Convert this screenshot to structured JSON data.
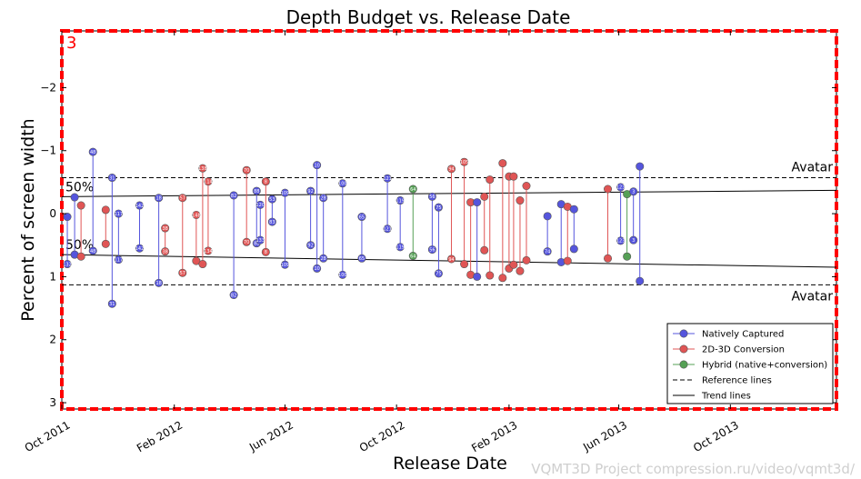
{
  "chart_data": {
    "type": "scatter",
    "title": "Depth Budget vs. Release Date",
    "xlabel": "Release Date",
    "ylabel": "Percent of screen width",
    "panel_number": "3",
    "watermark": "VQMT3D Project compression.ru/video/vqmt3d/",
    "xlim": [
      "2011-10-01",
      "2014-01-25"
    ],
    "ylim": [
      3.1,
      -2.9
    ],
    "y_inverted": true,
    "x_ticks": [
      {
        "date": "2011-10-01",
        "label": "Oct 2011"
      },
      {
        "date": "2012-02-01",
        "label": "Feb 2012"
      },
      {
        "date": "2012-06-01",
        "label": "Jun 2012"
      },
      {
        "date": "2012-10-01",
        "label": "Oct 2012"
      },
      {
        "date": "2013-02-01",
        "label": "Feb 2013"
      },
      {
        "date": "2013-06-01",
        "label": "Jun 2013"
      },
      {
        "date": "2013-10-01",
        "label": "Oct 2013"
      }
    ],
    "y_ticks": [
      {
        "value": -2,
        "label": "−2"
      },
      {
        "value": -1,
        "label": "−1"
      },
      {
        "value": 0,
        "label": "0"
      },
      {
        "value": 1,
        "label": "1"
      },
      {
        "value": 2,
        "label": "2"
      },
      {
        "value": 3,
        "label": "3"
      }
    ],
    "grid": false,
    "legend_position": "bottom-right",
    "colors": {
      "natively": "#5555dd",
      "conversion": "#e05555",
      "hybrid": "#55a055",
      "panel_border": "#ff0000"
    },
    "legend": [
      {
        "key": "natively",
        "label": "Natively Captured",
        "style": "marker"
      },
      {
        "key": "conversion",
        "label": "2D-3D Conversion",
        "style": "marker"
      },
      {
        "key": "hybrid",
        "label": "Hybrid (native+conversion)",
        "style": "marker"
      },
      {
        "key": "reference",
        "label": "Reference lines",
        "style": "dashed"
      },
      {
        "key": "trend",
        "label": "Trend lines",
        "style": "solid"
      }
    ],
    "reference_lines": [
      {
        "value": -0.57,
        "label": "Avatar",
        "label_side": "above"
      },
      {
        "value": 1.13,
        "label": "Avatar",
        "label_side": "below"
      }
    ],
    "trend_lines": [
      {
        "label": "50%",
        "start": [
          "2011-10-01",
          -0.27
        ],
        "end": [
          "2014-01-25",
          -0.37
        ]
      },
      {
        "label": "50%",
        "start": [
          "2011-10-01",
          0.65
        ],
        "end": [
          "2014-01-25",
          0.85
        ]
      }
    ],
    "films": [
      {
        "x": "2011-10-07",
        "top": 0.05,
        "bottom": 0.8,
        "type": "natively",
        "labels": [
          "",
          "132"
        ]
      },
      {
        "x": "2011-10-15",
        "top": -0.26,
        "bottom": 0.65,
        "type": "natively",
        "labels": [
          "",
          ""
        ]
      },
      {
        "x": "2011-10-22",
        "top": -0.13,
        "bottom": 0.68,
        "type": "conversion",
        "labels": [
          "",
          ""
        ]
      },
      {
        "x": "2011-11-04",
        "top": -0.98,
        "bottom": 0.59,
        "type": "natively",
        "labels": [
          "48",
          "48"
        ]
      },
      {
        "x": "2011-11-18",
        "top": -0.06,
        "bottom": 0.48,
        "type": "conversion",
        "labels": [
          "",
          ""
        ]
      },
      {
        "x": "2011-11-25",
        "top": -0.57,
        "bottom": 1.43,
        "type": "natively",
        "labels": [
          "31",
          "31"
        ]
      },
      {
        "x": "2011-12-02",
        "top": 0.0,
        "bottom": 0.73,
        "type": "natively",
        "labels": [
          "117",
          "117"
        ]
      },
      {
        "x": "2011-12-25",
        "top": -0.13,
        "bottom": 0.55,
        "type": "natively",
        "labels": [
          "142",
          "142"
        ]
      },
      {
        "x": "2012-01-15",
        "top": -0.25,
        "bottom": 1.1,
        "type": "natively",
        "labels": [
          "18",
          "18"
        ]
      },
      {
        "x": "2012-01-22",
        "top": 0.23,
        "bottom": 0.6,
        "type": "conversion",
        "labels": [
          "38",
          "38"
        ]
      },
      {
        "x": "2012-02-10",
        "top": -0.25,
        "bottom": 0.94,
        "type": "conversion",
        "labels": [
          "57",
          "57"
        ]
      },
      {
        "x": "2012-02-25",
        "top": 0.02,
        "bottom": 0.75,
        "type": "conversion",
        "labels": [
          "148",
          ""
        ]
      },
      {
        "x": "2012-03-03",
        "top": -0.72,
        "bottom": 0.8,
        "type": "conversion",
        "labels": [
          "138",
          ""
        ]
      },
      {
        "x": "2012-03-09",
        "top": -0.51,
        "bottom": 0.59,
        "type": "conversion",
        "labels": [
          "114",
          "134"
        ]
      },
      {
        "x": "2012-04-06",
        "top": -0.29,
        "bottom": 1.29,
        "type": "natively",
        "labels": [
          "82",
          "82"
        ]
      },
      {
        "x": "2012-04-20",
        "top": -0.69,
        "bottom": 0.45,
        "type": "conversion",
        "labels": [
          "70",
          "70"
        ]
      },
      {
        "x": "2012-05-01",
        "top": -0.36,
        "bottom": 0.47,
        "type": "natively",
        "labels": [
          "88",
          "88"
        ]
      },
      {
        "x": "2012-05-05",
        "top": -0.14,
        "bottom": 0.42,
        "type": "natively",
        "labels": [
          "120",
          "133"
        ]
      },
      {
        "x": "2012-05-11",
        "top": -0.51,
        "bottom": 0.61,
        "type": "conversion",
        "labels": [
          "8",
          "8"
        ]
      },
      {
        "x": "2012-05-18",
        "top": -0.23,
        "bottom": 0.13,
        "type": "natively",
        "labels": [
          "53",
          "83"
        ]
      },
      {
        "x": "2012-06-01",
        "top": -0.33,
        "bottom": 0.81,
        "type": "natively",
        "labels": [
          "109",
          "109"
        ]
      },
      {
        "x": "2012-06-29",
        "top": -0.36,
        "bottom": 0.5,
        "type": "natively",
        "labels": [
          "92",
          "92"
        ]
      },
      {
        "x": "2012-07-06",
        "top": -0.77,
        "bottom": 0.87,
        "type": "natively",
        "labels": [
          "10",
          "10"
        ]
      },
      {
        "x": "2012-07-13",
        "top": -0.25,
        "bottom": 0.71,
        "type": "natively",
        "labels": [
          "28",
          "28"
        ]
      },
      {
        "x": "2012-08-03",
        "top": -0.48,
        "bottom": 0.97,
        "type": "natively",
        "labels": [
          "100",
          "100"
        ]
      },
      {
        "x": "2012-08-24",
        "top": 0.05,
        "bottom": 0.71,
        "type": "natively",
        "labels": [
          "65",
          "65"
        ]
      },
      {
        "x": "2012-09-21",
        "top": -0.56,
        "bottom": 0.24,
        "type": "natively",
        "labels": [
          "121",
          "121"
        ]
      },
      {
        "x": "2012-10-05",
        "top": -0.21,
        "bottom": 0.53,
        "type": "natively",
        "labels": [
          "119",
          "119"
        ]
      },
      {
        "x": "2012-10-19",
        "top": -0.39,
        "bottom": 0.67,
        "type": "hybrid",
        "labels": [
          "64",
          "64"
        ]
      },
      {
        "x": "2012-11-09",
        "top": -0.27,
        "bottom": 0.57,
        "type": "natively",
        "labels": [
          "56",
          "56"
        ]
      },
      {
        "x": "2012-11-16",
        "top": -0.1,
        "bottom": 0.95,
        "type": "natively",
        "labels": [
          "75",
          "75"
        ]
      },
      {
        "x": "2012-11-30",
        "top": -0.71,
        "bottom": 0.72,
        "type": "conversion",
        "labels": [
          "94",
          "94"
        ]
      },
      {
        "x": "2012-12-14",
        "top": -0.82,
        "bottom": 0.8,
        "type": "conversion",
        "labels": [
          "105",
          ""
        ]
      },
      {
        "x": "2012-12-21",
        "top": -0.18,
        "bottom": 0.97,
        "type": "conversion",
        "labels": [
          "",
          ""
        ]
      },
      {
        "x": "2012-12-28",
        "top": -0.18,
        "bottom": 1.0,
        "type": "natively",
        "labels": [
          "",
          ""
        ]
      },
      {
        "x": "2013-01-05",
        "top": -0.27,
        "bottom": 0.58,
        "type": "conversion",
        "labels": [
          "",
          ""
        ]
      },
      {
        "x": "2013-01-11",
        "top": -0.54,
        "bottom": 0.98,
        "type": "conversion",
        "labels": [
          "",
          ""
        ]
      },
      {
        "x": "2013-01-25",
        "top": -0.8,
        "bottom": 1.02,
        "type": "conversion",
        "labels": [
          "",
          ""
        ]
      },
      {
        "x": "2013-02-01",
        "top": -0.59,
        "bottom": 0.87,
        "type": "conversion",
        "labels": [
          "",
          ""
        ]
      },
      {
        "x": "2013-02-06",
        "top": -0.59,
        "bottom": 0.81,
        "type": "conversion",
        "labels": [
          "",
          ""
        ]
      },
      {
        "x": "2013-02-13",
        "top": -0.21,
        "bottom": 0.91,
        "type": "conversion",
        "labels": [
          "",
          ""
        ]
      },
      {
        "x": "2013-02-20",
        "top": -0.44,
        "bottom": 0.74,
        "type": "conversion",
        "labels": [
          "",
          ""
        ]
      },
      {
        "x": "2013-03-15",
        "top": 0.04,
        "bottom": 0.6,
        "type": "natively",
        "labels": [
          "",
          "74"
        ]
      },
      {
        "x": "2013-03-30",
        "top": -0.15,
        "bottom": 0.77,
        "type": "natively",
        "labels": [
          "",
          ""
        ]
      },
      {
        "x": "2013-04-06",
        "top": -0.11,
        "bottom": 0.75,
        "type": "conversion",
        "labels": [
          "",
          ""
        ]
      },
      {
        "x": "2013-04-13",
        "top": -0.07,
        "bottom": 0.56,
        "type": "natively",
        "labels": [
          "",
          ""
        ]
      },
      {
        "x": "2013-05-20",
        "top": -0.39,
        "bottom": 0.71,
        "type": "conversion",
        "labels": [
          "",
          ""
        ]
      },
      {
        "x": "2013-06-03",
        "top": -0.42,
        "bottom": 0.43,
        "type": "natively",
        "labels": [
          "123",
          "123"
        ]
      },
      {
        "x": "2013-06-10",
        "top": -0.31,
        "bottom": 0.68,
        "type": "hybrid",
        "labels": [
          "",
          ""
        ]
      },
      {
        "x": "2013-06-17",
        "top": -0.35,
        "bottom": 0.42,
        "type": "natively",
        "labels": [
          "3",
          "3"
        ]
      },
      {
        "x": "2013-06-24",
        "top": -0.75,
        "bottom": 1.07,
        "type": "natively",
        "labels": [
          "",
          ""
        ]
      }
    ]
  }
}
